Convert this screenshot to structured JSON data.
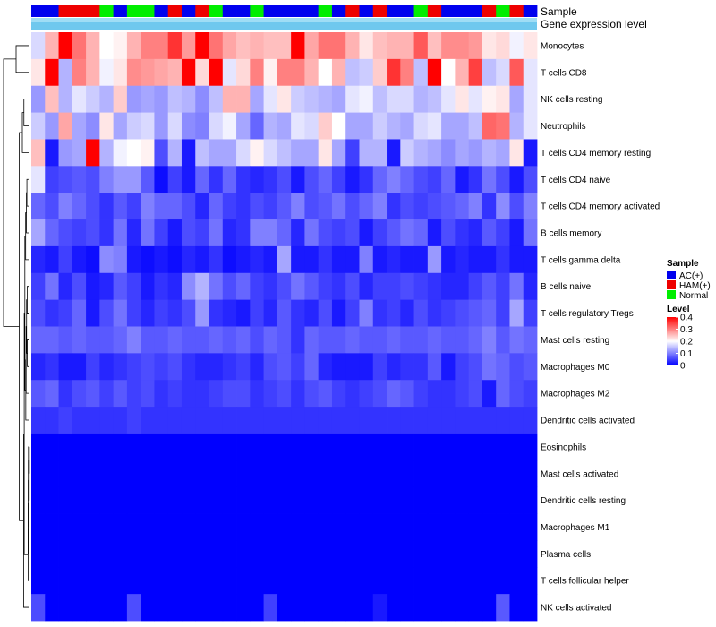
{
  "chart_data": {
    "type": "heatmap",
    "title": "",
    "annotation_rows": [
      "Sample",
      "Gene expression level"
    ],
    "row_labels": [
      "Monocytes",
      "T cells CD8",
      "NK cells resting",
      "Neutrophils",
      "T cells CD4 memory resting",
      "T cells CD4 naive",
      "T cells CD4 memory activated",
      "B cells memory",
      "T cells gamma delta",
      "B cells naive",
      "T cells regulatory  Tregs",
      "Mast cells resting",
      "Macrophages M0",
      "Macrophages M2",
      "Dendritic cells activated",
      "Eosinophils",
      "Mast cells activated",
      "Dendritic cells resting",
      "Macrophages M1",
      "Plasma cells",
      "T cells follicular helper",
      "NK cells activated"
    ],
    "sample_groups": [
      "AC(+)",
      "AC(+)",
      "HAM(+)",
      "HAM(+)",
      "HAM(+)",
      "Normal",
      "AC(+)",
      "Normal",
      "Normal",
      "AC(+)",
      "HAM(+)",
      "AC(+)",
      "HAM(+)",
      "Normal",
      "AC(+)",
      "AC(+)",
      "Normal",
      "AC(+)",
      "AC(+)",
      "AC(+)",
      "AC(+)",
      "Normal",
      "AC(+)",
      "HAM(+)",
      "AC(+)",
      "HAM(+)",
      "AC(+)",
      "AC(+)",
      "Normal",
      "HAM(+)",
      "AC(+)",
      "AC(+)",
      "AC(+)",
      "HAM(+)",
      "Normal",
      "HAM(+)",
      "AC(+)"
    ],
    "legend_sample": {
      "title": "Sample",
      "items": [
        {
          "label": "AC(+)",
          "color": "#0000EE"
        },
        {
          "label": "HAM(+)",
          "color": "#EE0000"
        },
        {
          "label": "Normal",
          "color": "#00EE00"
        }
      ]
    },
    "legend_level": {
      "title": "Level",
      "ticks": [
        "0.4",
        "0.3",
        "0.2",
        "0.1",
        "0"
      ],
      "range": [
        0,
        0.4
      ],
      "colors": [
        "#0000FF",
        "#FFFFFF",
        "#FF0000"
      ]
    },
    "values": [
      [
        0.17,
        0.26,
        0.4,
        0.31,
        0.26,
        0.2,
        0.21,
        0.26,
        0.3,
        0.3,
        0.36,
        0.28,
        0.4,
        0.31,
        0.27,
        0.25,
        0.26,
        0.25,
        0.25,
        0.4,
        0.27,
        0.31,
        0.31,
        0.26,
        0.22,
        0.25,
        0.26,
        0.26,
        0.33,
        0.25,
        0.29,
        0.29,
        0.28,
        0.22,
        0.23,
        0.19,
        0.22
      ],
      [
        0.22,
        0.4,
        0.14,
        0.3,
        0.26,
        0.19,
        0.22,
        0.29,
        0.28,
        0.27,
        0.26,
        0.4,
        0.23,
        0.4,
        0.18,
        0.23,
        0.3,
        0.21,
        0.3,
        0.3,
        0.26,
        0.2,
        0.26,
        0.15,
        0.16,
        0.24,
        0.36,
        0.3,
        0.15,
        0.4,
        0.2,
        0.26,
        0.35,
        0.15,
        0.17,
        0.33,
        0.18
      ],
      [
        0.12,
        0.25,
        0.14,
        0.18,
        0.16,
        0.14,
        0.24,
        0.12,
        0.13,
        0.12,
        0.15,
        0.14,
        0.11,
        0.15,
        0.26,
        0.26,
        0.13,
        0.18,
        0.22,
        0.16,
        0.15,
        0.14,
        0.13,
        0.18,
        0.19,
        0.15,
        0.17,
        0.17,
        0.14,
        0.15,
        0.18,
        0.22,
        0.18,
        0.21,
        0.22,
        0.13,
        0.18
      ],
      [
        0.16,
        0.12,
        0.27,
        0.13,
        0.11,
        0.22,
        0.13,
        0.16,
        0.17,
        0.12,
        0.17,
        0.11,
        0.1,
        0.17,
        0.19,
        0.13,
        0.08,
        0.14,
        0.13,
        0.18,
        0.17,
        0.24,
        0.2,
        0.13,
        0.13,
        0.16,
        0.14,
        0.13,
        0.17,
        0.18,
        0.13,
        0.13,
        0.15,
        0.32,
        0.31,
        0.14,
        0.18
      ],
      [
        0.25,
        0.02,
        0.12,
        0.13,
        0.4,
        0.14,
        0.19,
        0.2,
        0.21,
        0.06,
        0.14,
        0.02,
        0.15,
        0.13,
        0.13,
        0.17,
        0.21,
        0.17,
        0.15,
        0.13,
        0.13,
        0.22,
        0.13,
        0.05,
        0.14,
        0.14,
        0.02,
        0.16,
        0.14,
        0.13,
        0.11,
        0.13,
        0.12,
        0.14,
        0.13,
        0.22,
        0.02
      ],
      [
        0.18,
        0.05,
        0.06,
        0.07,
        0.06,
        0.1,
        0.12,
        0.12,
        0.07,
        0.01,
        0.05,
        0.02,
        0.08,
        0.04,
        0.08,
        0.04,
        0.03,
        0.04,
        0.06,
        0.02,
        0.06,
        0.08,
        0.05,
        0.02,
        0.04,
        0.08,
        0.1,
        0.08,
        0.06,
        0.05,
        0.08,
        0.02,
        0.04,
        0.09,
        0.06,
        0.02,
        0.06
      ],
      [
        0.08,
        0.06,
        0.1,
        0.08,
        0.06,
        0.04,
        0.07,
        0.05,
        0.1,
        0.08,
        0.08,
        0.06,
        0.03,
        0.08,
        0.05,
        0.04,
        0.06,
        0.05,
        0.07,
        0.1,
        0.06,
        0.07,
        0.09,
        0.06,
        0.08,
        0.1,
        0.04,
        0.06,
        0.05,
        0.06,
        0.07,
        0.08,
        0.1,
        0.04,
        0.11,
        0.06,
        0.1
      ],
      [
        0.13,
        0.08,
        0.06,
        0.05,
        0.06,
        0.04,
        0.09,
        0.03,
        0.09,
        0.05,
        0.02,
        0.06,
        0.05,
        0.09,
        0.03,
        0.04,
        0.1,
        0.1,
        0.08,
        0.03,
        0.09,
        0.06,
        0.05,
        0.06,
        0.02,
        0.05,
        0.07,
        0.09,
        0.08,
        0.02,
        0.06,
        0.04,
        0.03,
        0.07,
        0.05,
        0.02,
        0.09
      ],
      [
        0.03,
        0.02,
        0.05,
        0.02,
        0.01,
        0.11,
        0.1,
        0.02,
        0.01,
        0.02,
        0.01,
        0.03,
        0.02,
        0.04,
        0.01,
        0.02,
        0.03,
        0.02,
        0.13,
        0.02,
        0.02,
        0.04,
        0.02,
        0.02,
        0.1,
        0.02,
        0.03,
        0.02,
        0.02,
        0.12,
        0.02,
        0.03,
        0.02,
        0.02,
        0.04,
        0.02,
        0.02
      ],
      [
        0.05,
        0.09,
        0.03,
        0.06,
        0.02,
        0.03,
        0.07,
        0.05,
        0.02,
        0.04,
        0.03,
        0.11,
        0.14,
        0.09,
        0.06,
        0.08,
        0.05,
        0.04,
        0.06,
        0.09,
        0.07,
        0.05,
        0.04,
        0.06,
        0.03,
        0.05,
        0.05,
        0.06,
        0.05,
        0.04,
        0.03,
        0.03,
        0.05,
        0.07,
        0.05,
        0.09,
        0.03
      ],
      [
        0.06,
        0.04,
        0.05,
        0.08,
        0.02,
        0.06,
        0.09,
        0.05,
        0.03,
        0.05,
        0.04,
        0.06,
        0.12,
        0.04,
        0.03,
        0.02,
        0.05,
        0.03,
        0.07,
        0.04,
        0.03,
        0.06,
        0.02,
        0.05,
        0.1,
        0.04,
        0.05,
        0.03,
        0.06,
        0.04,
        0.05,
        0.06,
        0.07,
        0.08,
        0.05,
        0.13,
        0.05
      ],
      [
        0.08,
        0.08,
        0.07,
        0.08,
        0.07,
        0.07,
        0.08,
        0.1,
        0.07,
        0.07,
        0.08,
        0.07,
        0.07,
        0.08,
        0.07,
        0.08,
        0.06,
        0.08,
        0.07,
        0.04,
        0.08,
        0.07,
        0.07,
        0.08,
        0.07,
        0.07,
        0.08,
        0.07,
        0.07,
        0.08,
        0.07,
        0.07,
        0.08,
        0.1,
        0.07,
        0.09,
        0.08
      ],
      [
        0.03,
        0.04,
        0.02,
        0.02,
        0.05,
        0.03,
        0.04,
        0.05,
        0.06,
        0.05,
        0.06,
        0.04,
        0.03,
        0.03,
        0.04,
        0.05,
        0.03,
        0.06,
        0.07,
        0.05,
        0.08,
        0.03,
        0.02,
        0.02,
        0.02,
        0.05,
        0.03,
        0.04,
        0.04,
        0.07,
        0.02,
        0.05,
        0.06,
        0.09,
        0.08,
        0.06,
        0.07
      ],
      [
        0.07,
        0.08,
        0.04,
        0.06,
        0.07,
        0.05,
        0.07,
        0.05,
        0.06,
        0.04,
        0.05,
        0.04,
        0.04,
        0.05,
        0.06,
        0.06,
        0.04,
        0.05,
        0.06,
        0.04,
        0.06,
        0.07,
        0.05,
        0.04,
        0.05,
        0.06,
        0.08,
        0.07,
        0.05,
        0.04,
        0.04,
        0.05,
        0.06,
        0.02,
        0.08,
        0.06,
        0.05
      ],
      [
        0.04,
        0.04,
        0.05,
        0.04,
        0.04,
        0.04,
        0.04,
        0.05,
        0.04,
        0.04,
        0.04,
        0.04,
        0.04,
        0.04,
        0.04,
        0.04,
        0.04,
        0.04,
        0.04,
        0.04,
        0.04,
        0.04,
        0.04,
        0.04,
        0.04,
        0.04,
        0.04,
        0.04,
        0.04,
        0.04,
        0.04,
        0.04,
        0.04,
        0.04,
        0.04,
        0.04,
        0.04
      ],
      [
        0,
        0,
        0,
        0,
        0,
        0,
        0,
        0,
        0,
        0,
        0,
        0,
        0,
        0,
        0,
        0,
        0,
        0,
        0,
        0,
        0,
        0,
        0,
        0,
        0,
        0,
        0,
        0,
        0,
        0,
        0,
        0,
        0,
        0,
        0,
        0,
        0
      ],
      [
        0,
        0,
        0,
        0,
        0,
        0,
        0,
        0,
        0,
        0,
        0,
        0,
        0,
        0,
        0,
        0,
        0,
        0,
        0,
        0,
        0,
        0,
        0,
        0,
        0,
        0,
        0,
        0,
        0,
        0,
        0,
        0,
        0,
        0,
        0,
        0,
        0
      ],
      [
        0,
        0,
        0,
        0,
        0,
        0,
        0,
        0,
        0,
        0,
        0,
        0,
        0,
        0,
        0,
        0,
        0,
        0,
        0,
        0,
        0,
        0,
        0,
        0,
        0,
        0,
        0,
        0,
        0,
        0,
        0,
        0,
        0,
        0,
        0,
        0,
        0
      ],
      [
        0,
        0,
        0,
        0,
        0,
        0,
        0,
        0,
        0,
        0,
        0,
        0,
        0,
        0,
        0,
        0,
        0,
        0,
        0,
        0,
        0,
        0,
        0,
        0,
        0,
        0,
        0,
        0,
        0,
        0,
        0,
        0,
        0,
        0,
        0,
        0,
        0
      ],
      [
        0,
        0,
        0,
        0,
        0,
        0,
        0,
        0,
        0,
        0,
        0,
        0,
        0,
        0,
        0,
        0,
        0,
        0,
        0,
        0,
        0,
        0,
        0,
        0,
        0,
        0,
        0,
        0,
        0,
        0,
        0,
        0,
        0,
        0,
        0,
        0,
        0
      ],
      [
        0,
        0,
        0,
        0,
        0,
        0,
        0,
        0,
        0,
        0,
        0,
        0,
        0,
        0,
        0,
        0,
        0,
        0,
        0,
        0,
        0,
        0,
        0,
        0,
        0,
        0,
        0,
        0,
        0,
        0,
        0,
        0,
        0,
        0,
        0,
        0,
        0
      ],
      [
        0.06,
        0,
        0,
        0,
        0,
        0,
        0,
        0.06,
        0,
        0,
        0,
        0,
        0,
        0,
        0,
        0,
        0,
        0.05,
        0,
        0,
        0,
        0,
        0,
        0,
        0,
        0.02,
        0,
        0,
        0,
        0,
        0,
        0,
        0,
        0,
        0.07,
        0,
        0
      ]
    ],
    "dendrogram_merges": [
      [
        -16,
        -17
      ],
      [
        1,
        -18
      ],
      [
        2,
        -19
      ],
      [
        3,
        -20
      ],
      [
        4,
        -21
      ],
      [
        -12,
        -13
      ],
      [
        -10,
        -11
      ],
      [
        7,
        6
      ],
      [
        8,
        -14
      ],
      [
        9,
        -15
      ],
      [
        -6,
        -7
      ],
      [
        11,
        -8
      ],
      [
        12,
        -9
      ],
      [
        13,
        10
      ],
      [
        14,
        5
      ],
      [
        15,
        -22
      ],
      [
        -3,
        -4
      ],
      [
        17,
        -5
      ],
      [
        18,
        16
      ],
      [
        -1,
        -2
      ],
      [
        20,
        19
      ]
    ],
    "dendrogram_heights": [
      0.05,
      0.08,
      0.11,
      0.14,
      0.17,
      0.4,
      0.45,
      0.65,
      0.8,
      0.9,
      0.55,
      0.7,
      0.95,
      1.2,
      1.4,
      1.6,
      1.5,
      2.0,
      3.0,
      4.0,
      8.0
    ]
  }
}
